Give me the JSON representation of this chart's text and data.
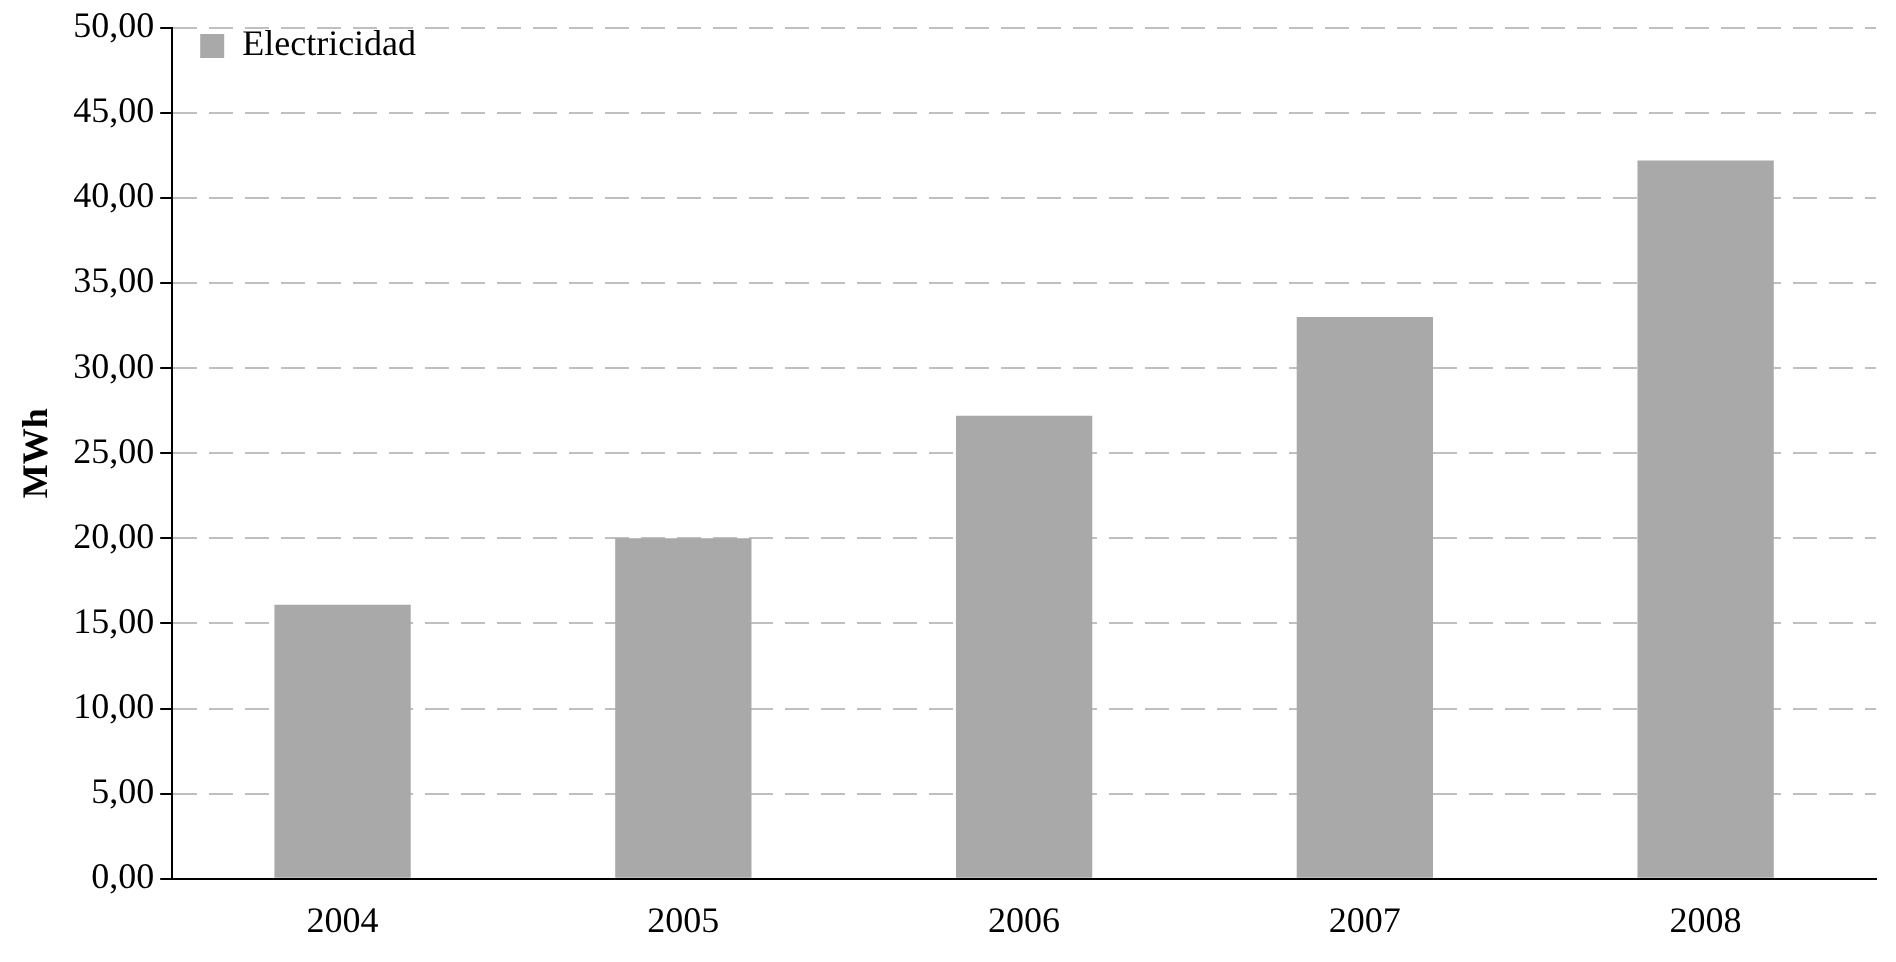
{
  "chart_data": {
    "type": "bar",
    "ylabel": "MWh",
    "categories": [
      "2004",
      "2005",
      "2006",
      "2007",
      "2008"
    ],
    "series": [
      {
        "name": "Electricidad",
        "color": "#a9a9a9",
        "values": [
          16.1,
          20.0,
          27.2,
          33.0,
          42.2
        ]
      }
    ],
    "ylim": [
      0,
      50
    ],
    "yticks": [
      {
        "value": 0,
        "label": "0,00"
      },
      {
        "value": 5,
        "label": "5,00"
      },
      {
        "value": 10,
        "label": "10,00"
      },
      {
        "value": 15,
        "label": "15,00"
      },
      {
        "value": 20,
        "label": "20,00"
      },
      {
        "value": 25,
        "label": "25,00"
      },
      {
        "value": 30,
        "label": "30,00"
      },
      {
        "value": 35,
        "label": "35,00"
      },
      {
        "value": 40,
        "label": "40,00"
      },
      {
        "value": 45,
        "label": "45,00"
      },
      {
        "value": 50,
        "label": "50,00"
      }
    ],
    "grid": "y",
    "legend": "top left"
  }
}
